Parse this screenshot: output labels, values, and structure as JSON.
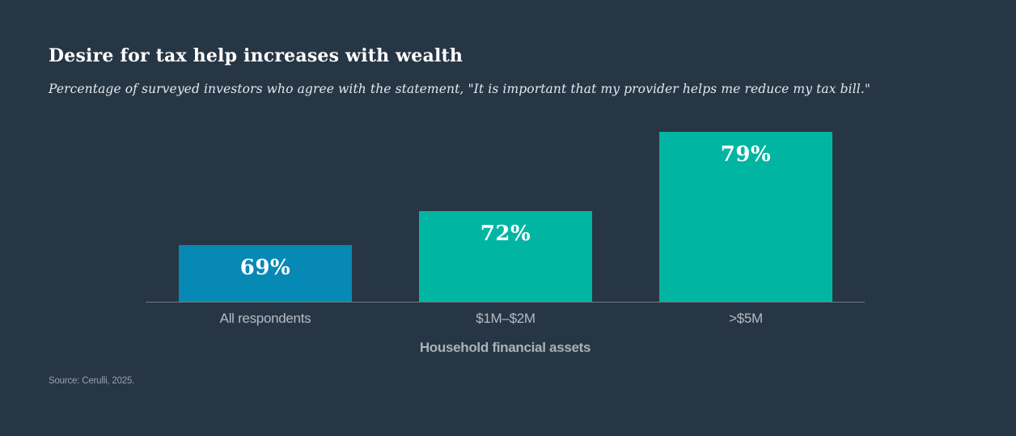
{
  "page": {
    "background_color": "#273645"
  },
  "header": {
    "title": "Desire for tax help increases with wealth",
    "subtitle": "Percentage of surveyed investors who agree with the statement, \"It is important that my provider helps me reduce my tax bill.\""
  },
  "chart_data": {
    "type": "bar",
    "title": "Desire for tax help increases with wealth",
    "subtitle": "Percentage of surveyed investors who agree with the statement, \"It is important that my provider helps me reduce my tax bill.\"",
    "categories": [
      "All respondents",
      "$1M–$2M",
      ">$5M"
    ],
    "values": [
      69,
      72,
      79
    ],
    "value_labels": [
      "69%",
      "72%",
      "79%"
    ],
    "bar_colors": [
      "#0789b5",
      "#00b6a2",
      "#00b6a2"
    ],
    "value_label_color": "#ffffff",
    "xlabel": "Household financial assets",
    "ylabel": "",
    "ylim": [
      64,
      80
    ],
    "grid": false,
    "legend": null,
    "value_label_position": "inside-top",
    "axis_color": "#6e7a85"
  },
  "footer": {
    "source": "Source: Cerulli, 2025."
  }
}
